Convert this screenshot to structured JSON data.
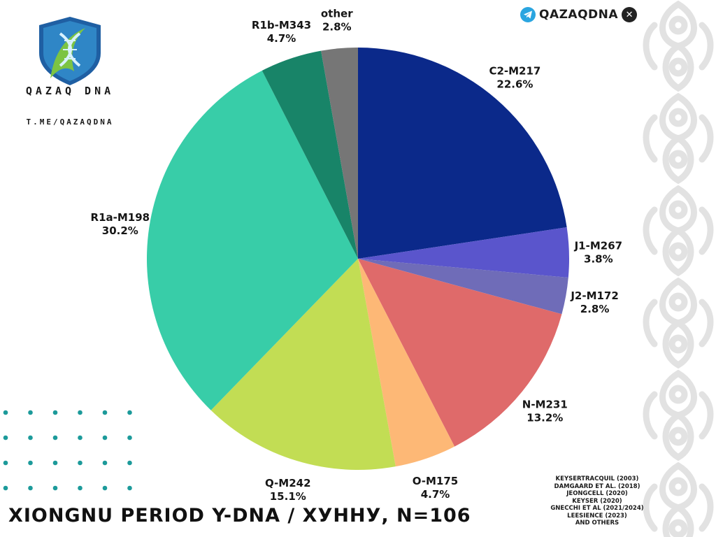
{
  "brand": {
    "name": "QAZAQDNA",
    "logo_text": "QAZAQ DNA",
    "telegram_handle": "T.ME/QAZAQDNA",
    "telegram_icon": "telegram-icon",
    "x_icon": "x-twitter-icon"
  },
  "title": "XIONGNU PERIOD Y-DNA / ХУННУ, N=106",
  "sources": [
    "KEYSERTRACQUIL (2003)",
    "DAMGAARD ET AL. (2018)",
    "JEONGCELL (2020)",
    "KEYSER (2020)",
    "GNECCHI ET AL (2021/2024)",
    "LEESIENCE (2023)",
    "AND OTHERS"
  ],
  "chart_data": {
    "type": "pie",
    "title": "XIONGNU PERIOD Y-DNA / ХУННУ, N=106",
    "start_angle": "12 o'clock",
    "direction": "clockwise",
    "slices": [
      {
        "label": "C2-M217",
        "value": 22.6,
        "value_label": "22.6%",
        "color": "#0b298a"
      },
      {
        "label": "J1-M267",
        "value": 3.8,
        "value_label": "3.8%",
        "color": "#5a55cc"
      },
      {
        "label": "J2-M172",
        "value": 2.8,
        "value_label": "2.8%",
        "color": "#6f6cb8"
      },
      {
        "label": "N-M231",
        "value": 13.2,
        "value_label": "13.2%",
        "color": "#df6a6a"
      },
      {
        "label": "O-M175",
        "value": 4.7,
        "value_label": "4.7%",
        "color": "#fdb876"
      },
      {
        "label": "Q-M242",
        "value": 15.1,
        "value_label": "15.1%",
        "color": "#c2dd54"
      },
      {
        "label": "R1a-M198",
        "value": 30.2,
        "value_label": "30.2%",
        "color": "#38cda8"
      },
      {
        "label": "R1b-M343",
        "value": 4.7,
        "value_label": "4.7%",
        "color": "#188468"
      },
      {
        "label": "other",
        "value": 2.8,
        "value_label": "2.8%",
        "color": "#767676"
      }
    ]
  }
}
